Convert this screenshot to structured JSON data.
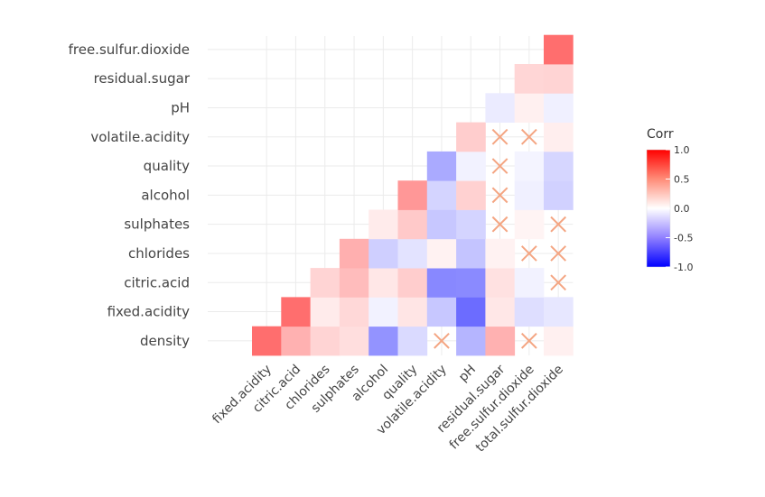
{
  "chart_data": {
    "type": "heatmap",
    "title": "",
    "x_labels": [
      "fixed.acidity",
      "citric.acid",
      "chlorides",
      "sulphates",
      "alcohol",
      "quality",
      "volatile.acidity",
      "pH",
      "residual.sugar",
      "free.sulfur.dioxide",
      "total.sulfur.dioxide"
    ],
    "y_labels": [
      "density",
      "fixed.acidity",
      "citric.acid",
      "chlorides",
      "sulphates",
      "alcohol",
      "quality",
      "volatile.acidity",
      "pH",
      "residual.sugar",
      "free.sulfur.dioxide"
    ],
    "cells": [
      {
        "y": "density",
        "x": "fixed.acidity",
        "value": 0.67
      },
      {
        "y": "density",
        "x": "citric.acid",
        "value": 0.36
      },
      {
        "y": "density",
        "x": "chlorides",
        "value": 0.2
      },
      {
        "y": "density",
        "x": "sulphates",
        "value": 0.15
      },
      {
        "y": "density",
        "x": "alcohol",
        "value": -0.5
      },
      {
        "y": "density",
        "x": "quality",
        "value": -0.17
      },
      {
        "y": "density",
        "x": "volatile.acidity",
        "value": 0.02,
        "insignificant": true
      },
      {
        "y": "density",
        "x": "pH",
        "value": -0.34
      },
      {
        "y": "density",
        "x": "residual.sugar",
        "value": 0.36
      },
      {
        "y": "density",
        "x": "free.sulfur.dioxide",
        "value": -0.02,
        "insignificant": true
      },
      {
        "y": "density",
        "x": "total.sulfur.dioxide",
        "value": 0.07
      },
      {
        "y": "fixed.acidity",
        "x": "citric.acid",
        "value": 0.67
      },
      {
        "y": "fixed.acidity",
        "x": "chlorides",
        "value": 0.09
      },
      {
        "y": "fixed.acidity",
        "x": "sulphates",
        "value": 0.18
      },
      {
        "y": "fixed.acidity",
        "x": "alcohol",
        "value": -0.06
      },
      {
        "y": "fixed.acidity",
        "x": "quality",
        "value": 0.12
      },
      {
        "y": "fixed.acidity",
        "x": "volatile.acidity",
        "value": -0.26
      },
      {
        "y": "fixed.acidity",
        "x": "pH",
        "value": -0.68
      },
      {
        "y": "fixed.acidity",
        "x": "residual.sugar",
        "value": 0.11
      },
      {
        "y": "fixed.acidity",
        "x": "free.sulfur.dioxide",
        "value": -0.15
      },
      {
        "y": "fixed.acidity",
        "x": "total.sulfur.dioxide",
        "value": -0.11
      },
      {
        "y": "citric.acid",
        "x": "chlorides",
        "value": 0.2
      },
      {
        "y": "citric.acid",
        "x": "sulphates",
        "value": 0.31
      },
      {
        "y": "citric.acid",
        "x": "alcohol",
        "value": 0.11
      },
      {
        "y": "citric.acid",
        "x": "quality",
        "value": 0.23
      },
      {
        "y": "citric.acid",
        "x": "volatile.acidity",
        "value": -0.55
      },
      {
        "y": "citric.acid",
        "x": "pH",
        "value": -0.54
      },
      {
        "y": "citric.acid",
        "x": "residual.sugar",
        "value": 0.14
      },
      {
        "y": "citric.acid",
        "x": "free.sulfur.dioxide",
        "value": -0.06
      },
      {
        "y": "citric.acid",
        "x": "total.sulfur.dioxide",
        "value": 0.04,
        "insignificant": true
      },
      {
        "y": "chlorides",
        "x": "sulphates",
        "value": 0.37
      },
      {
        "y": "chlorides",
        "x": "alcohol",
        "value": -0.22
      },
      {
        "y": "chlorides",
        "x": "quality",
        "value": -0.13
      },
      {
        "y": "chlorides",
        "x": "volatile.acidity",
        "value": 0.06
      },
      {
        "y": "chlorides",
        "x": "pH",
        "value": -0.27
      },
      {
        "y": "chlorides",
        "x": "residual.sugar",
        "value": 0.06
      },
      {
        "y": "chlorides",
        "x": "free.sulfur.dioxide",
        "value": 0.01,
        "insignificant": true
      },
      {
        "y": "chlorides",
        "x": "total.sulfur.dioxide",
        "value": 0.05,
        "insignificant": true
      },
      {
        "y": "sulphates",
        "x": "alcohol",
        "value": 0.09
      },
      {
        "y": "sulphates",
        "x": "quality",
        "value": 0.25
      },
      {
        "y": "sulphates",
        "x": "volatile.acidity",
        "value": -0.26
      },
      {
        "y": "sulphates",
        "x": "pH",
        "value": -0.2
      },
      {
        "y": "sulphates",
        "x": "residual.sugar",
        "value": 0.01,
        "insignificant": true
      },
      {
        "y": "sulphates",
        "x": "free.sulfur.dioxide",
        "value": 0.05
      },
      {
        "y": "sulphates",
        "x": "total.sulfur.dioxide",
        "value": 0.04,
        "insignificant": true
      },
      {
        "y": "alcohol",
        "x": "quality",
        "value": 0.48
      },
      {
        "y": "alcohol",
        "x": "volatile.acidity",
        "value": -0.2
      },
      {
        "y": "alcohol",
        "x": "pH",
        "value": 0.21
      },
      {
        "y": "alcohol",
        "x": "residual.sugar",
        "value": 0.04,
        "insignificant": true
      },
      {
        "y": "alcohol",
        "x": "free.sulfur.dioxide",
        "value": -0.07
      },
      {
        "y": "alcohol",
        "x": "total.sulfur.dioxide",
        "value": -0.21
      },
      {
        "y": "quality",
        "x": "volatile.acidity",
        "value": -0.39
      },
      {
        "y": "quality",
        "x": "pH",
        "value": -0.06
      },
      {
        "y": "quality",
        "x": "residual.sugar",
        "value": 0.01,
        "insignificant": true
      },
      {
        "y": "quality",
        "x": "free.sulfur.dioxide",
        "value": -0.05
      },
      {
        "y": "quality",
        "x": "total.sulfur.dioxide",
        "value": -0.19
      },
      {
        "y": "volatile.acidity",
        "x": "pH",
        "value": 0.23
      },
      {
        "y": "volatile.acidity",
        "x": "residual.sugar",
        "value": 0.0,
        "insignificant": true
      },
      {
        "y": "volatile.acidity",
        "x": "free.sulfur.dioxide",
        "value": -0.01,
        "insignificant": true
      },
      {
        "y": "volatile.acidity",
        "x": "total.sulfur.dioxide",
        "value": 0.08
      },
      {
        "y": "pH",
        "x": "residual.sugar",
        "value": -0.09
      },
      {
        "y": "pH",
        "x": "free.sulfur.dioxide",
        "value": 0.07
      },
      {
        "y": "pH",
        "x": "total.sulfur.dioxide",
        "value": -0.07
      },
      {
        "y": "residual.sugar",
        "x": "free.sulfur.dioxide",
        "value": 0.19
      },
      {
        "y": "residual.sugar",
        "x": "total.sulfur.dioxide",
        "value": 0.2
      },
      {
        "y": "free.sulfur.dioxide",
        "x": "total.sulfur.dioxide",
        "value": 0.67
      }
    ],
    "insignificant_marker": "×",
    "legend": {
      "title": "Corr",
      "ticks": [
        "1.0",
        "0.5",
        "0.0",
        "-0.5",
        "-1.0"
      ],
      "tick_values": [
        1.0,
        0.5,
        0.0,
        -0.5,
        -1.0
      ],
      "placement": "right"
    },
    "value_range": [
      -1,
      1
    ],
    "colors": {
      "low": "#0000ff",
      "mid": "#ffffff",
      "high": "#ff0000",
      "marker": "#f4a582",
      "grid": "#ebebeb"
    },
    "grid": true
  }
}
